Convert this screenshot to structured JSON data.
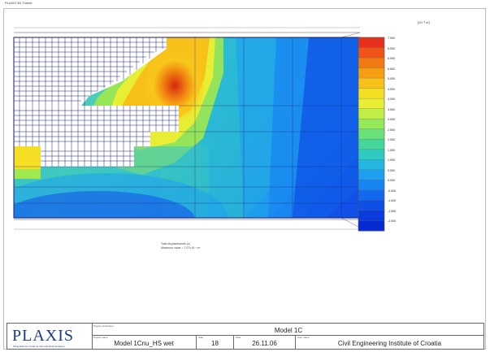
{
  "window": {
    "title": "PLAXIS 3D Tunnel"
  },
  "plot": {
    "units": "[10⁻³ m]",
    "caption_line1": "Total displacements |u|",
    "caption_line2": "Maximum value = 7.07×10⁻³ m"
  },
  "legend": {
    "labels": [
      "7.000",
      "6.500",
      "6.000",
      "5.500",
      "5.000",
      "4.500",
      "4.000",
      "3.500",
      "3.000",
      "2.500",
      "2.000",
      "1.500",
      "1.000",
      "0.500",
      "0.000",
      "-0.500",
      "-1.000",
      "-1.500",
      "-2.000"
    ],
    "colors": [
      "#e8311d",
      "#ef5416",
      "#f37a10",
      "#f59e12",
      "#f8c11a",
      "#f5df25",
      "#e8ee33",
      "#c2ef45",
      "#94e85a",
      "#69e17a",
      "#45d69c",
      "#2fcac0",
      "#24b7df",
      "#1e9ff0",
      "#1884f2",
      "#1368ee",
      "#0e4fe6",
      "#0a3bde",
      "#0629d3"
    ],
    "bottom_label": "-2.000"
  },
  "footer": {
    "logo_text": "PLAXIS",
    "logo_sub": "Finite Element Code for Soil and Rock Analyses",
    "project_description_label": "Project description",
    "project_description": "Model 1C",
    "project_name_label": "Project name",
    "project_name": "Model 1Cnu_HS wet",
    "step_label": "Step",
    "step": "18",
    "date_label": "Date",
    "date": "26.11.06",
    "user_label": "User name",
    "user": "Civil Engineering Institute of Croatia"
  }
}
